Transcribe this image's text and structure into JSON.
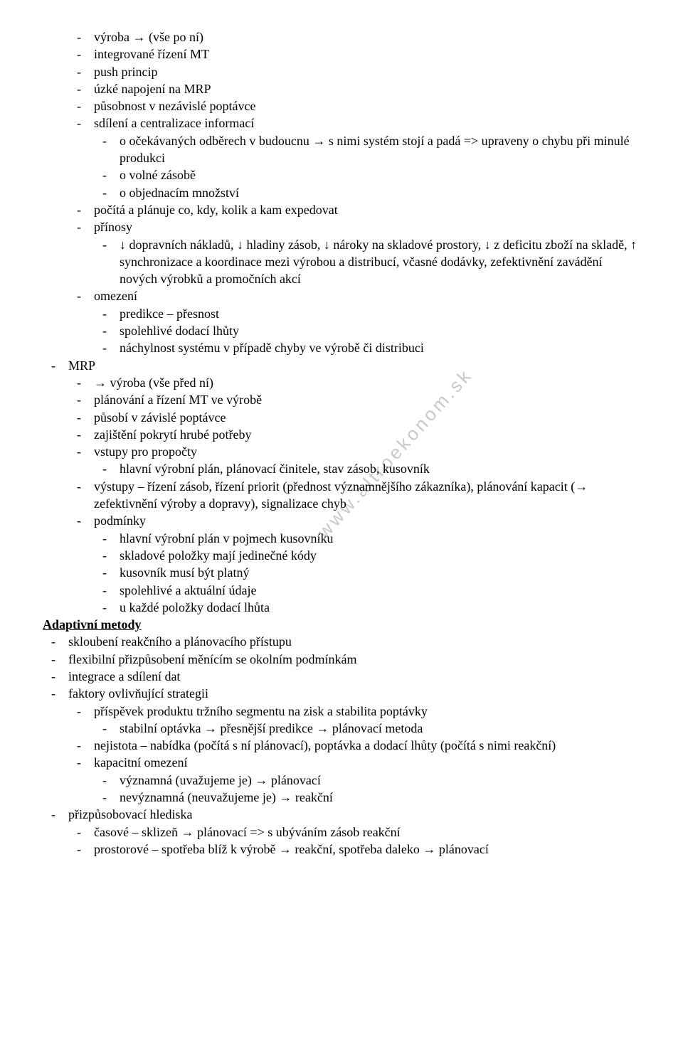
{
  "watermark": "www.altroekonom.sk",
  "lines": [
    {
      "level": 1,
      "text": "výroba → (vše po ní)"
    },
    {
      "level": 1,
      "text": "integrované řízení MT"
    },
    {
      "level": 1,
      "text": "push princip"
    },
    {
      "level": 1,
      "text": "úzké napojení na MRP"
    },
    {
      "level": 1,
      "text": "působnost v nezávislé poptávce"
    },
    {
      "level": 1,
      "text": "sdílení a centralizace informací"
    },
    {
      "level": 2,
      "text": "o očekávaných odběrech v budoucnu → s nimi systém stojí a padá => upraveny o chybu při minulé produkci"
    },
    {
      "level": 2,
      "text": "o volné zásobě"
    },
    {
      "level": 2,
      "text": "o objednacím množství"
    },
    {
      "level": 1,
      "text": "počítá a plánuje co, kdy, kolik a kam expedovat"
    },
    {
      "level": 1,
      "text": "přínosy"
    },
    {
      "level": 2,
      "text": "↓ dopravních nákladů, ↓ hladiny zásob, ↓ nároky na skladové prostory, ↓ z deficitu zboží na skladě, ↑ synchronizace a koordinace mezi výrobou a distribucí, včasné dodávky, zefektivnění zavádění nových výrobků a promočních akcí"
    },
    {
      "level": 1,
      "text": "omezení"
    },
    {
      "level": 2,
      "text": "predikce – přesnost"
    },
    {
      "level": 2,
      "text": "spolehlivé dodací lhůty"
    },
    {
      "level": 2,
      "text": "náchylnost systému v případě chyby ve výrobě či distribuci"
    },
    {
      "level": 0,
      "text": "MRP"
    },
    {
      "level": 1,
      "text": "→ výroba (vše před ní)"
    },
    {
      "level": 1,
      "text": "plánování a řízení MT ve výrobě"
    },
    {
      "level": 1,
      "text": "působí v závislé poptávce"
    },
    {
      "level": 1,
      "text": "zajištění pokrytí hrubé potřeby"
    },
    {
      "level": 1,
      "text": "vstupy pro propočty"
    },
    {
      "level": 2,
      "text": "hlavní výrobní plán, plánovací činitele, stav zásob, kusovník"
    },
    {
      "level": 1,
      "text": "výstupy – řízení zásob, řízení priorit (přednost významnějšího zákazníka), plánování kapacit (→ zefektivnění výroby a dopravy), signalizace chyb"
    },
    {
      "level": 1,
      "text": "podmínky"
    },
    {
      "level": 2,
      "text": "hlavní výrobní plán v pojmech kusovníku"
    },
    {
      "level": 2,
      "text": "skladové položky mají jedinečné kódy"
    },
    {
      "level": 2,
      "text": "kusovník musí být platný"
    },
    {
      "level": 2,
      "text": "spolehlivé a aktuální údaje"
    },
    {
      "level": 2,
      "text": "u každé položky dodací lhůta"
    },
    {
      "heading": true,
      "text": "Adaptivní metody"
    },
    {
      "level": 0,
      "text": "skloubení reakčního a plánovacího přístupu"
    },
    {
      "level": 0,
      "text": "flexibilní přizpůsobení měnícím se okolním podmínkám"
    },
    {
      "level": 0,
      "text": "integrace a sdílení dat"
    },
    {
      "level": 0,
      "text": "faktory ovlivňující strategii"
    },
    {
      "level": 1,
      "text": "příspěvek produktu tržního segmentu na zisk a stabilita poptávky"
    },
    {
      "level": 2,
      "text": "stabilní optávka → přesnější predikce → plánovací metoda"
    },
    {
      "level": 1,
      "text": "nejistota – nabídka (počítá s ní plánovací), poptávka a dodací lhůty (počítá s nimi reakční)"
    },
    {
      "level": 1,
      "text": "kapacitní omezení"
    },
    {
      "level": 2,
      "text": "významná (uvažujeme je) → plánovací"
    },
    {
      "level": 2,
      "text": "nevýznamná (neuvažujeme je) → reakční"
    },
    {
      "level": 0,
      "text": "přizpůsobovací hlediska"
    },
    {
      "level": 1,
      "text": "časové – sklizeň → plánovací => s ubýváním zásob reakční"
    },
    {
      "level": 1,
      "text": "prostorové – spotřeba blíž k výrobě → reakční, spotřeba daleko → plánovací"
    }
  ]
}
